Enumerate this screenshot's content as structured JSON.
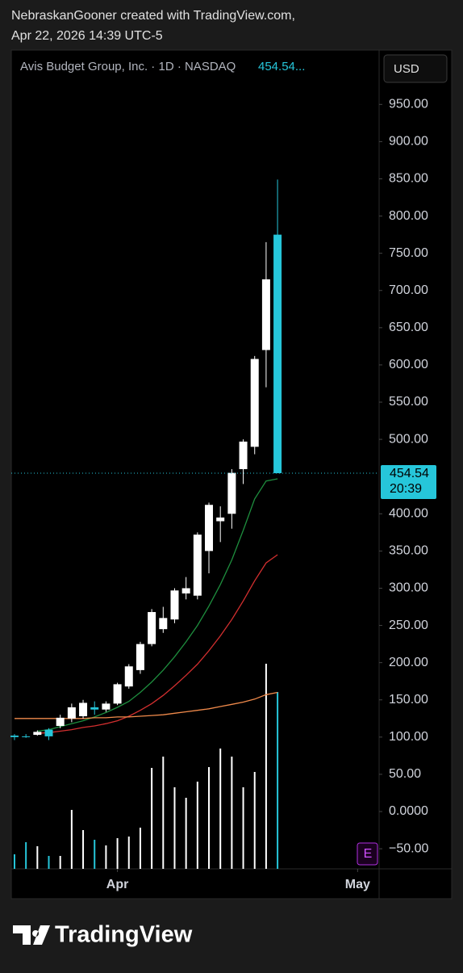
{
  "header": {
    "line1": "NebraskanGooner created with TradingView.com,",
    "line2": "Apr 22, 2026 14:39 UTC-5"
  },
  "chart_data": {
    "type": "candlestick",
    "title": "Avis Budget Group, Inc. · 1D · NASDAQ",
    "last_price_label": "454.54...",
    "currency": "USD",
    "x": [
      0,
      1,
      2,
      3,
      4,
      5,
      6,
      7,
      8,
      9,
      10,
      11,
      12,
      13,
      14,
      15,
      16,
      17,
      18,
      19,
      20,
      21,
      22,
      23
    ],
    "open": [
      102,
      101,
      103,
      110,
      115,
      125,
      128,
      140,
      137,
      145,
      168,
      190,
      225,
      245,
      258,
      293,
      290,
      350,
      390,
      400,
      460,
      490,
      620,
      775
    ],
    "high": [
      104,
      104,
      109,
      112,
      130,
      145,
      150,
      148,
      148,
      173,
      198,
      228,
      272,
      275,
      300,
      315,
      375,
      415,
      410,
      460,
      500,
      612,
      765,
      849
    ],
    "low": [
      96,
      99,
      102,
      96,
      112,
      120,
      125,
      130,
      134,
      143,
      165,
      185,
      222,
      240,
      253,
      285,
      285,
      320,
      362,
      380,
      440,
      480,
      570,
      454.54
    ],
    "close": [
      100,
      100,
      107,
      101,
      126,
      140,
      146,
      137,
      145,
      171,
      195,
      225,
      268,
      260,
      297,
      300,
      372,
      412,
      395,
      455,
      497,
      608,
      715,
      454.54
    ],
    "up_color": "#ffffff",
    "down_color": "#26c6da",
    "volume": [
      18,
      33,
      28,
      16,
      16,
      73,
      48,
      36,
      29,
      38,
      40,
      51,
      125,
      139,
      101,
      88,
      108,
      126,
      149,
      139,
      101,
      120,
      254,
      219
    ],
    "volume_lim": [
      0,
      1014
    ],
    "moving_averages": [
      {
        "color": "#1e8e3e",
        "values": [
          null,
          null,
          108,
          110,
          114,
          118,
          122,
          127,
          133,
          140,
          148,
          160,
          174,
          190,
          208,
          228,
          250,
          276,
          305,
          338,
          378,
          420,
          444,
          447
        ]
      },
      {
        "color": "#d32f2f",
        "values": [
          null,
          null,
          105,
          106,
          108,
          110,
          113,
          115,
          118,
          122,
          128,
          136,
          145,
          156,
          169,
          183,
          198,
          216,
          236,
          258,
          283,
          310,
          334,
          345
        ]
      },
      {
        "color": "#f08a4b",
        "values": [
          125,
          125,
          125,
          125,
          125,
          125,
          125,
          126,
          126,
          127,
          127,
          128,
          129,
          130,
          132,
          134,
          136,
          138,
          141,
          144,
          147,
          151,
          157,
          160
        ]
      }
    ],
    "price_line": {
      "value": 454.54,
      "label": "454.54",
      "countdown": "20:39"
    },
    "ylim": [
      -77,
      1023
    ],
    "yticks": [
      {
        "value": 950,
        "label": "950.00"
      },
      {
        "value": 900,
        "label": "900.00"
      },
      {
        "value": 850,
        "label": "850.00"
      },
      {
        "value": 800,
        "label": "800.00"
      },
      {
        "value": 750,
        "label": "750.00"
      },
      {
        "value": 700,
        "label": "700.00"
      },
      {
        "value": 650,
        "label": "650.00"
      },
      {
        "value": 600,
        "label": "600.00"
      },
      {
        "value": 550,
        "label": "550.00"
      },
      {
        "value": 500,
        "label": "500.00"
      },
      {
        "value": 400,
        "label": "400.00"
      },
      {
        "value": 350,
        "label": "350.00"
      },
      {
        "value": 300,
        "label": "300.00"
      },
      {
        "value": 250,
        "label": "250.00"
      },
      {
        "value": 200,
        "label": "200.00"
      },
      {
        "value": 150,
        "label": "150.00"
      },
      {
        "value": 100,
        "label": "100.00"
      },
      {
        "value": 50,
        "label": "50.00"
      },
      {
        "value": 0,
        "label": "0.0000"
      },
      {
        "value": -50,
        "label": "−50.00"
      }
    ],
    "xlim": [
      -0.28,
      31.88
    ],
    "xticks": [
      {
        "value": 9,
        "label": "Apr"
      },
      {
        "value": 30,
        "label": "May"
      }
    ],
    "earnings_icon": "E"
  },
  "footer": {
    "brand": "TradingView"
  }
}
